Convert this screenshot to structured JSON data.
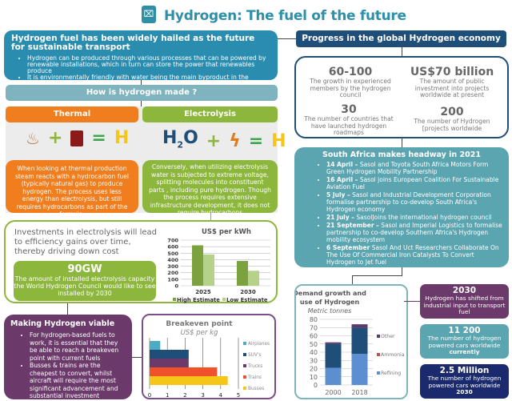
{
  "title": "Hydrogen: The fuel of the future",
  "intro": {
    "heading": "Hydrogen fuel has been widely hailed as the future for sustainable transport",
    "bullets": [
      "Hydrogen can be produced through various processes that can be powered by renewable installations, which in turn can store the power that renewables produce",
      "It is environmentally friendly with water being the main byproduct in the production of hydrogen"
    ]
  },
  "how": {
    "title": "How is hydrogen made ?",
    "thermal": {
      "label": "Thermal",
      "result": "H",
      "desc": "When looking at thermal production steam reacts with a hydrocarbon fuel (typically natural gas) to produce hydrogen. The process uses less energy than electrolysis, but still requires hydrocarbons as part of the formula."
    },
    "electrolysis": {
      "label": "Electrolysis",
      "h": "H",
      "two": "2",
      "o": "O",
      "result": "H",
      "desc": "Conversely, when utilizing electrolysis water is subjected to extreme voltage, splitting molecules into constituent parts , including pure hydrogen. Though the process requires extensive infrastructure development, it does not require hydrocarbons"
    }
  },
  "investment": {
    "text": "Investments in electrolysis will lead to efficiency gains over time, thereby driving down cost",
    "big": "90GW",
    "big_desc": "The amount of installed electrolysis capacity the World Hydrogen Council would like to see installed by 2030"
  },
  "viable": {
    "heading": "Making Hydrogen viable",
    "bullets": [
      "For hydrogen-based fuels to work, it is essential that they be able to reach a breakeven point with current fuels",
      "Busses & trains are the cheapest to convert, whilst aircraft will require the most significant advancement and substantial investment"
    ]
  },
  "progress": {
    "title": "Progress in the global Hydrogen economy",
    "stats": [
      {
        "value": "60-100",
        "desc": "The growth in experienced members by the hydrogen council"
      },
      {
        "value": "US$70 billion",
        "desc": "The amount of public investment into  projects worldwide at present"
      },
      {
        "value": "30",
        "desc": "The number of countries that have launched hydrogen roadmaps"
      },
      {
        "value": "200",
        "desc": "The number of Hydrogen [projects worldwide"
      }
    ]
  },
  "south_africa": {
    "title": "South Africa makes headway in 2021",
    "items": [
      {
        "date": "14 April –",
        "text": " Sasol and Toyota South Africa Motors Form Green Hydrogen Mobility Partnership"
      },
      {
        "date": "16 April –",
        "text": " Sasol joins European Coalition For Sustainable Aviation Fuel"
      },
      {
        "date": "5 July –",
        "text": " Sasol and Industrial Development Corporation formalise partnership to co-develop South Africa's Hydrogen economy"
      },
      {
        "date": "21 July –",
        "text": " SasolJoins the international hydrogen council"
      },
      {
        "date": "21 September –",
        "text": " Sasol and Imperial Logistics to formalise partnership to co-develop Southern Africa's Hydrogen mobility ecosystem"
      },
      {
        "date": "6 September",
        "text": "  Sasol And Uct Researchers Collaborate On The Use Of Commercial Iron Catalysts To Convert Hydrogen to Jet fuel"
      }
    ]
  },
  "facts": [
    {
      "value": "2030",
      "desc": "Hydrogen has shifted from industrial input to transport fuel",
      "color": "#6b3a6b"
    },
    {
      "value": "11 200",
      "desc": "The number of hydrogen powered cars worldwide",
      "strong": "currently",
      "color": "#5ba5b0"
    },
    {
      "value": "2.5 Million",
      "desc": "The number of hydrogen powered cars worldwide",
      "strong": "2030",
      "color": "#1a2a6c"
    }
  ],
  "chart_data": [
    {
      "type": "bar",
      "title": "US$ per kWh",
      "categories": [
        "2025",
        "2030"
      ],
      "ylim": [
        0,
        700
      ],
      "yticks": [
        0,
        100,
        200,
        300,
        400,
        500,
        600,
        700
      ],
      "grid": true,
      "legend": "bottom",
      "series": [
        {
          "name": "High Estimate",
          "values": [
            620,
            380
          ],
          "color": "#7ba23f"
        },
        {
          "name": "Low Estimate",
          "values": [
            480,
            230
          ],
          "color": "#b5d18a"
        }
      ]
    },
    {
      "type": "bar",
      "orientation": "horizontal",
      "title": "Breakeven point",
      "subtitle": "US$ per kg",
      "categories": [
        "Airplanes",
        "SUV's",
        "Trucks",
        "Trains",
        "Busses"
      ],
      "values": [
        0.6,
        2.2,
        2.2,
        3.8,
        4.4
      ],
      "colors": [
        "#4bacc6",
        "#1f4e79",
        "#6b3a6b",
        "#f0502a",
        "#f5c518"
      ],
      "xlim": [
        0,
        5
      ],
      "xticks": [
        0,
        1,
        2,
        3,
        4,
        5
      ],
      "grid": true,
      "legend": "right"
    },
    {
      "type": "bar",
      "stacked": true,
      "title": "Demand growth and use of Hydrogen",
      "subtitle": "Metric tonnes",
      "categories": [
        "2000",
        "2018"
      ],
      "ylim": [
        0,
        80
      ],
      "yticks": [
        0,
        10,
        20,
        30,
        40,
        50,
        60,
        70,
        80
      ],
      "grid": true,
      "legend": "right",
      "series": [
        {
          "name": "Refining",
          "values": [
            21,
            38
          ],
          "color": "#5b8fd0"
        },
        {
          "name": "Ammonia",
          "values": [
            29,
            32
          ],
          "color": "#1f4e79",
          "legend_color": "#c0504d"
        },
        {
          "name": "Other",
          "values": [
            2,
            4
          ],
          "color": "#5b3a6b"
        }
      ]
    }
  ]
}
